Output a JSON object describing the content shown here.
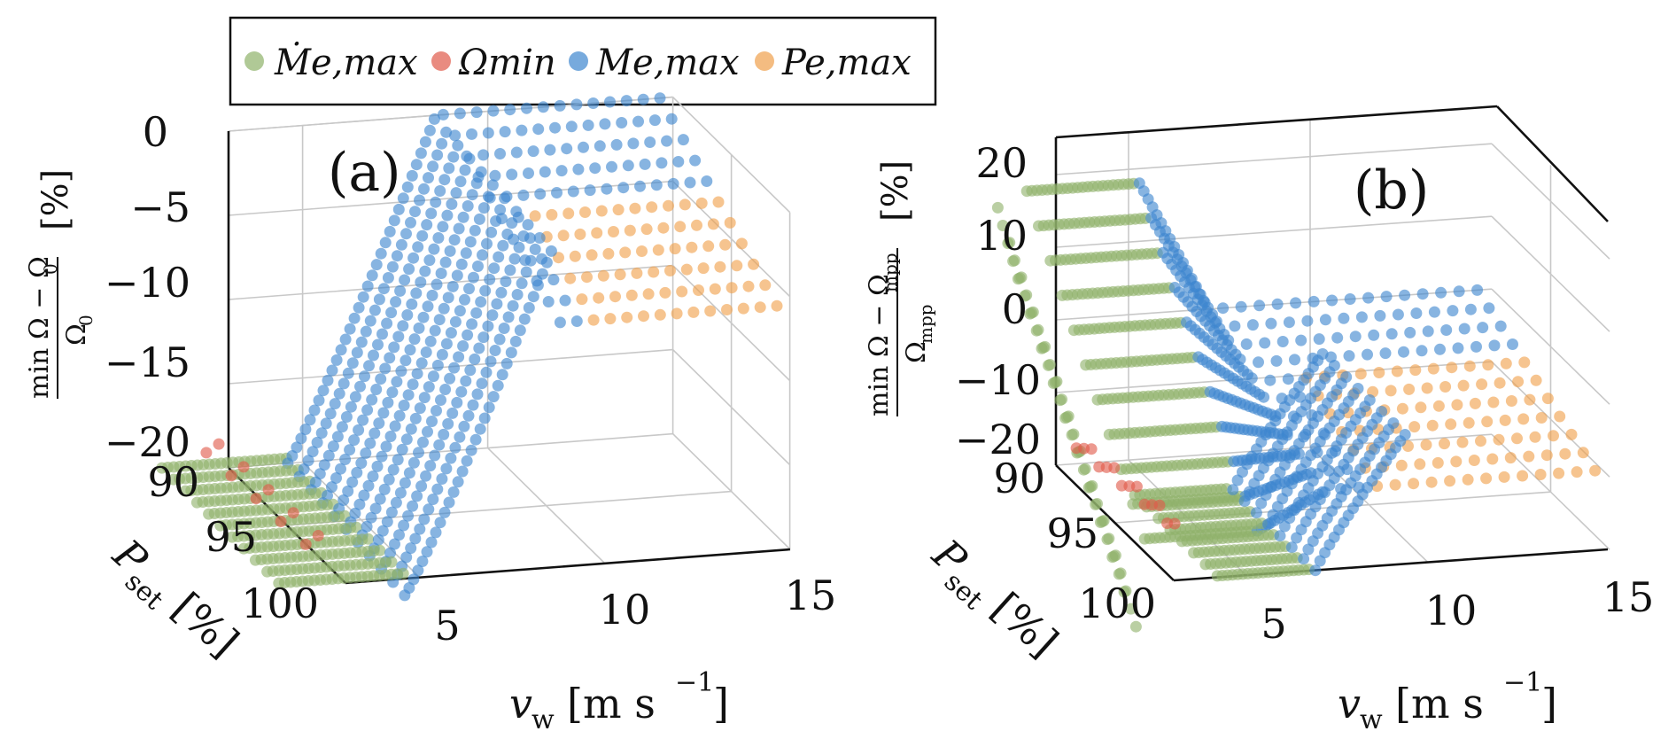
{
  "legend": [
    {
      "key": "mdot",
      "label": "Ṁe,max",
      "color": "#8fb26a"
    },
    {
      "key": "omin",
      "label": "Ωmin",
      "color": "#e05a4a"
    },
    {
      "key": "mmax",
      "label": "Me,max",
      "color": "#3d86cf"
    },
    {
      "key": "pmax",
      "label": "Pe,max",
      "color": "#f0a04b"
    }
  ],
  "chart_data": [
    {
      "type": "scatter3d",
      "panel": "(a)",
      "xlabel": "v_w [m s^-1]",
      "ylabel": "P_set [%]",
      "zlabel": "(min Ω − Ω0)/Ω0 [%]",
      "x_ticks": [
        "5",
        "10",
        "15"
      ],
      "y_ticks": [
        "90",
        "95",
        "100"
      ],
      "z_ticks": [
        "0",
        "−5",
        "−10",
        "−15",
        "−20"
      ],
      "xlim": [
        3,
        15
      ],
      "ylim": [
        90,
        100
      ],
      "zlim": [
        -20,
        0
      ],
      "series": [
        "Ṁe,max",
        "Ωmin",
        "Me,max",
        "Pe,max"
      ]
    },
    {
      "type": "scatter3d",
      "panel": "(b)",
      "xlabel": "v_w [m s^-1]",
      "ylabel": "P_set [%]",
      "zlabel": "(min Ω − Ωmpp)/Ωmpp [%]",
      "x_ticks": [
        "5",
        "10",
        "15"
      ],
      "y_ticks": [
        "90",
        "95",
        "100"
      ],
      "z_ticks": [
        "20",
        "10",
        "0",
        "−10",
        "−20"
      ],
      "xlim": [
        3,
        15
      ],
      "ylim": [
        90,
        100
      ],
      "zlim": [
        -20,
        25
      ],
      "series": [
        "Ṁe,max",
        "Ωmin",
        "Me,max",
        "Pe,max"
      ]
    }
  ],
  "text": {
    "panel_a": "(a)",
    "panel_b": "(b)",
    "xlabel_v": "v",
    "xlabel_sub": "w",
    "xlabel_unit": "[m s",
    "xlabel_exp": "−1",
    "xlabel_close": "]",
    "ylabel_p": "P",
    "ylabel_sub": "set",
    "ylabel_unit": "[%]",
    "za_num": "min Ω − Ω",
    "za_num_sub": "0",
    "za_den": "Ω",
    "za_den_sub": "0",
    "za_unit": "[%]",
    "zb_num": "min Ω − Ω",
    "zb_num_sub": "mpp",
    "zb_den": "Ω",
    "zb_den_sub": "mpp",
    "zb_unit": "[%]"
  }
}
